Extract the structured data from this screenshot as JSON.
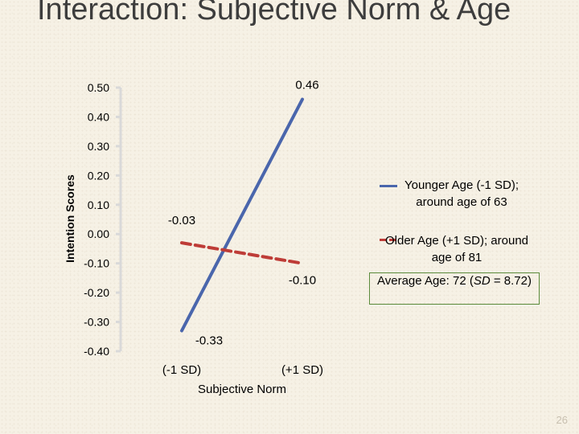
{
  "slide": {
    "title": "Interaction: Subjective Norm & Age",
    "page_number": "26",
    "note_prefix": "Average Age: 72 (",
    "note_italic": "SD",
    "note_suffix": " = 8.72)"
  },
  "colors": {
    "younger_series": "#4a66ac",
    "older_series": "#be3c37",
    "axis": "#d9d9d9",
    "note_border": "#5a8a3a"
  },
  "chart_data": {
    "type": "line",
    "ylabel": "Intention Scores",
    "xlabel": "Subjective Norm",
    "ylim": [
      -0.4,
      0.5
    ],
    "yticks": [
      0.5,
      0.4,
      0.3,
      0.2,
      0.1,
      0.0,
      -0.1,
      -0.2,
      -0.3,
      -0.4
    ],
    "ytick_labels": [
      "0.50",
      "0.40",
      "0.30",
      "0.20",
      "0.10",
      "0.00",
      "-0.10",
      "-0.20",
      "-0.30",
      "-0.40"
    ],
    "categories": [
      "(-1 SD)",
      "(+1 SD)"
    ],
    "grid": false,
    "legend_position": "right",
    "series": [
      {
        "name": "Younger Age (-1 SD); around age of 63",
        "values": [
          -0.33,
          0.46
        ],
        "value_labels": [
          "-0.33",
          "0.46"
        ],
        "style": "solid"
      },
      {
        "name": "Older Age (+1 SD); around age of 81",
        "values": [
          -0.03,
          -0.1
        ],
        "value_labels": [
          "-0.03",
          "-0.10"
        ],
        "style": "dashed"
      }
    ]
  }
}
